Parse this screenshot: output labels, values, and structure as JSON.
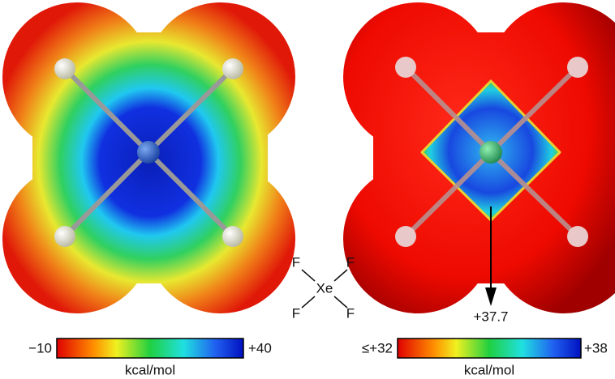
{
  "molecule_label": {
    "atoms": [
      "F",
      "F",
      "Xe",
      "F",
      "F"
    ]
  },
  "left_panel": {
    "scale_min": "−10",
    "scale_max": "+40",
    "unit": "kcal/mol"
  },
  "right_panel": {
    "annotation": "+37.7",
    "scale_min": "≤+32",
    "scale_max": "+38",
    "unit": "kcal/mol"
  }
}
